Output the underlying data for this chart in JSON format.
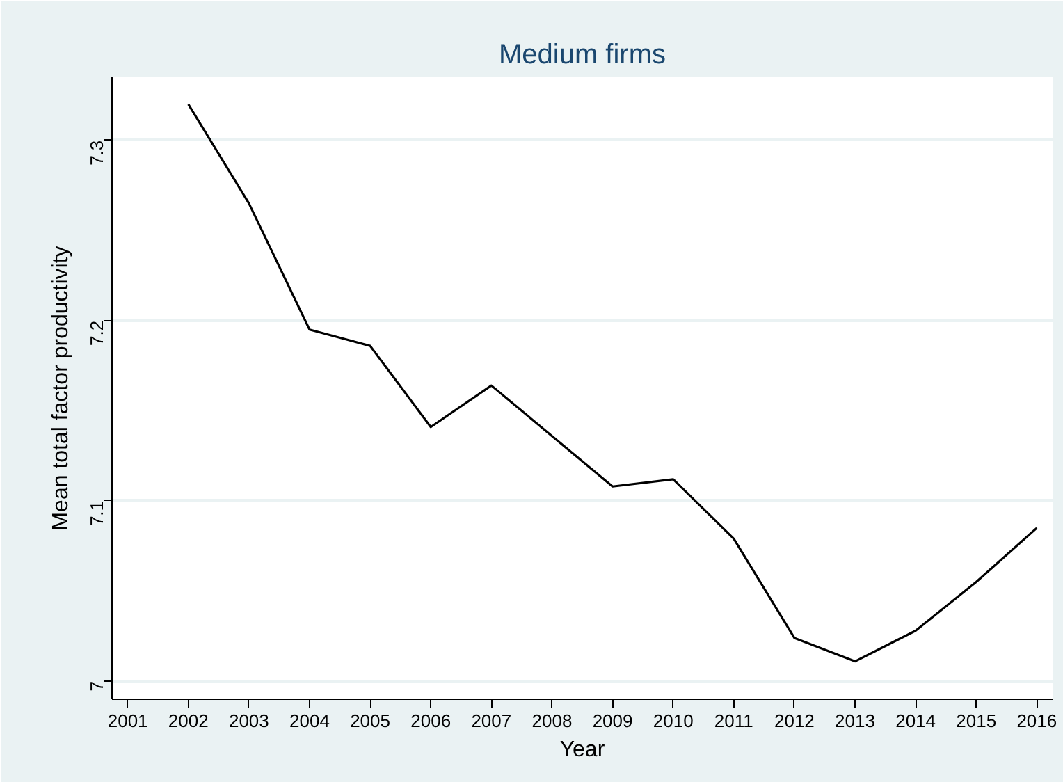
{
  "chart_data": {
    "type": "line",
    "title": "Medium firms",
    "xlabel": "Year",
    "ylabel": "Mean total factor productivity",
    "x": [
      2002,
      2003,
      2004,
      2005,
      2006,
      2007,
      2008,
      2009,
      2010,
      2011,
      2012,
      2013,
      2014,
      2015,
      2016
    ],
    "series": [
      {
        "color": "#000000",
        "values": [
          7.32,
          7.265,
          7.195,
          7.186,
          7.141,
          7.164,
          7.136,
          7.108,
          7.112,
          7.079,
          7.024,
          7.011,
          7.028,
          7.055,
          7.085
        ]
      }
    ],
    "xlim": [
      2000.74,
      2016.26
    ],
    "ylim": [
      6.99,
      7.335
    ],
    "xticks": [
      2001,
      2002,
      2003,
      2004,
      2005,
      2006,
      2007,
      2008,
      2009,
      2010,
      2011,
      2012,
      2013,
      2014,
      2015,
      2016
    ],
    "yticks": [
      7,
      7.1,
      7.2,
      7.3
    ],
    "grid": "y",
    "marker": "none",
    "line_style": "solid"
  }
}
